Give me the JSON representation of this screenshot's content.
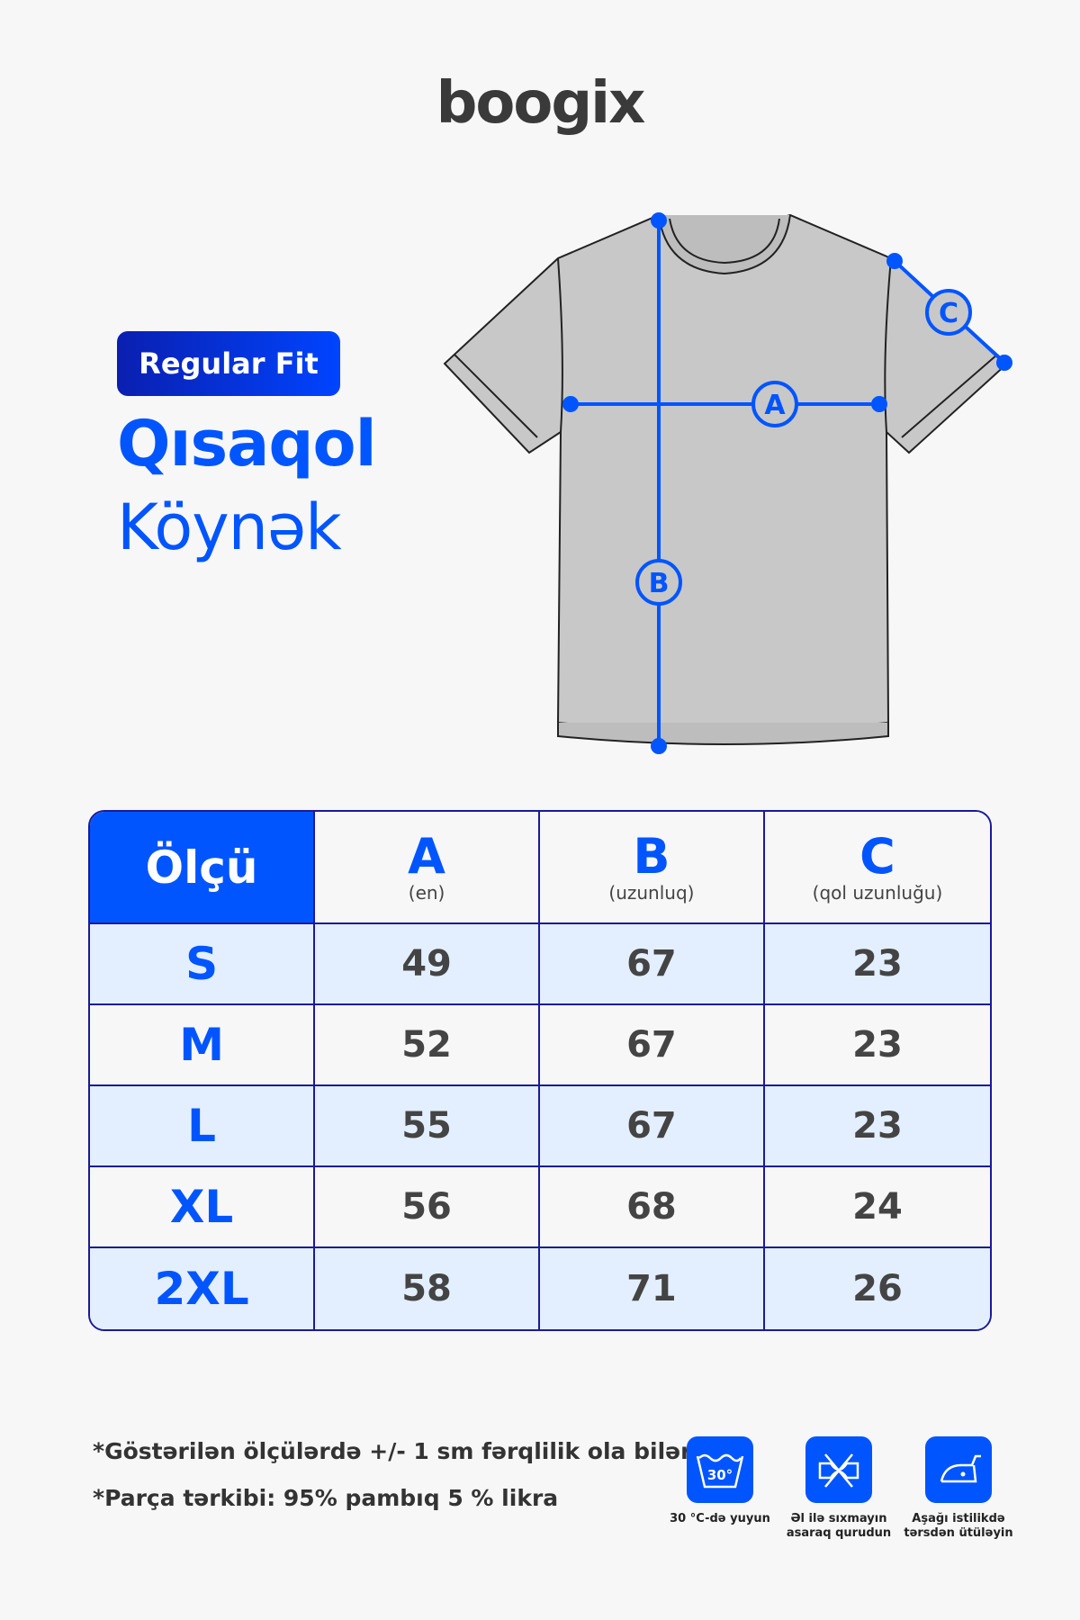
{
  "brand": "boogix",
  "badge": "Regular Fit",
  "title_line1": "Qısaqol",
  "title_line2": "Köynək",
  "diagram_labels": {
    "a": "A",
    "b": "B",
    "c": "C"
  },
  "table": {
    "corner": "Ölçü",
    "columns": [
      {
        "letter": "A",
        "desc": "(en)"
      },
      {
        "letter": "B",
        "desc": "(uzunluq)"
      },
      {
        "letter": "C",
        "desc": "(qol uzunluğu)"
      }
    ],
    "rows": [
      {
        "size": "S",
        "a": "49",
        "b": "67",
        "c": "23"
      },
      {
        "size": "M",
        "a": "52",
        "b": "67",
        "c": "23"
      },
      {
        "size": "L",
        "a": "55",
        "b": "67",
        "c": "23"
      },
      {
        "size": "XL",
        "a": "56",
        "b": "68",
        "c": "24"
      },
      {
        "size": "2XL",
        "a": "58",
        "b": "71",
        "c": "26"
      }
    ]
  },
  "notes": [
    "*Göstərilən ölçülərdə +/- 1 sm fərqlilik ola bilər.",
    "*Parça tərkibi: 95% pambıq 5 % likra"
  ],
  "care": [
    {
      "icon": "wash-30-icon",
      "label": "30 °C-də yuyun",
      "temp": "30°"
    },
    {
      "icon": "do-not-wring-icon",
      "label": "Əl ilə sıxmayın asaraq qurudun"
    },
    {
      "icon": "iron-low-icon",
      "label": "Aşağı istilikdə tərsdən ütüləyin"
    }
  ],
  "colors": {
    "accent": "#0055ff",
    "border": "#1a1a9a",
    "shirt": "#c8c8c8",
    "row_alt": "#e3efff"
  }
}
